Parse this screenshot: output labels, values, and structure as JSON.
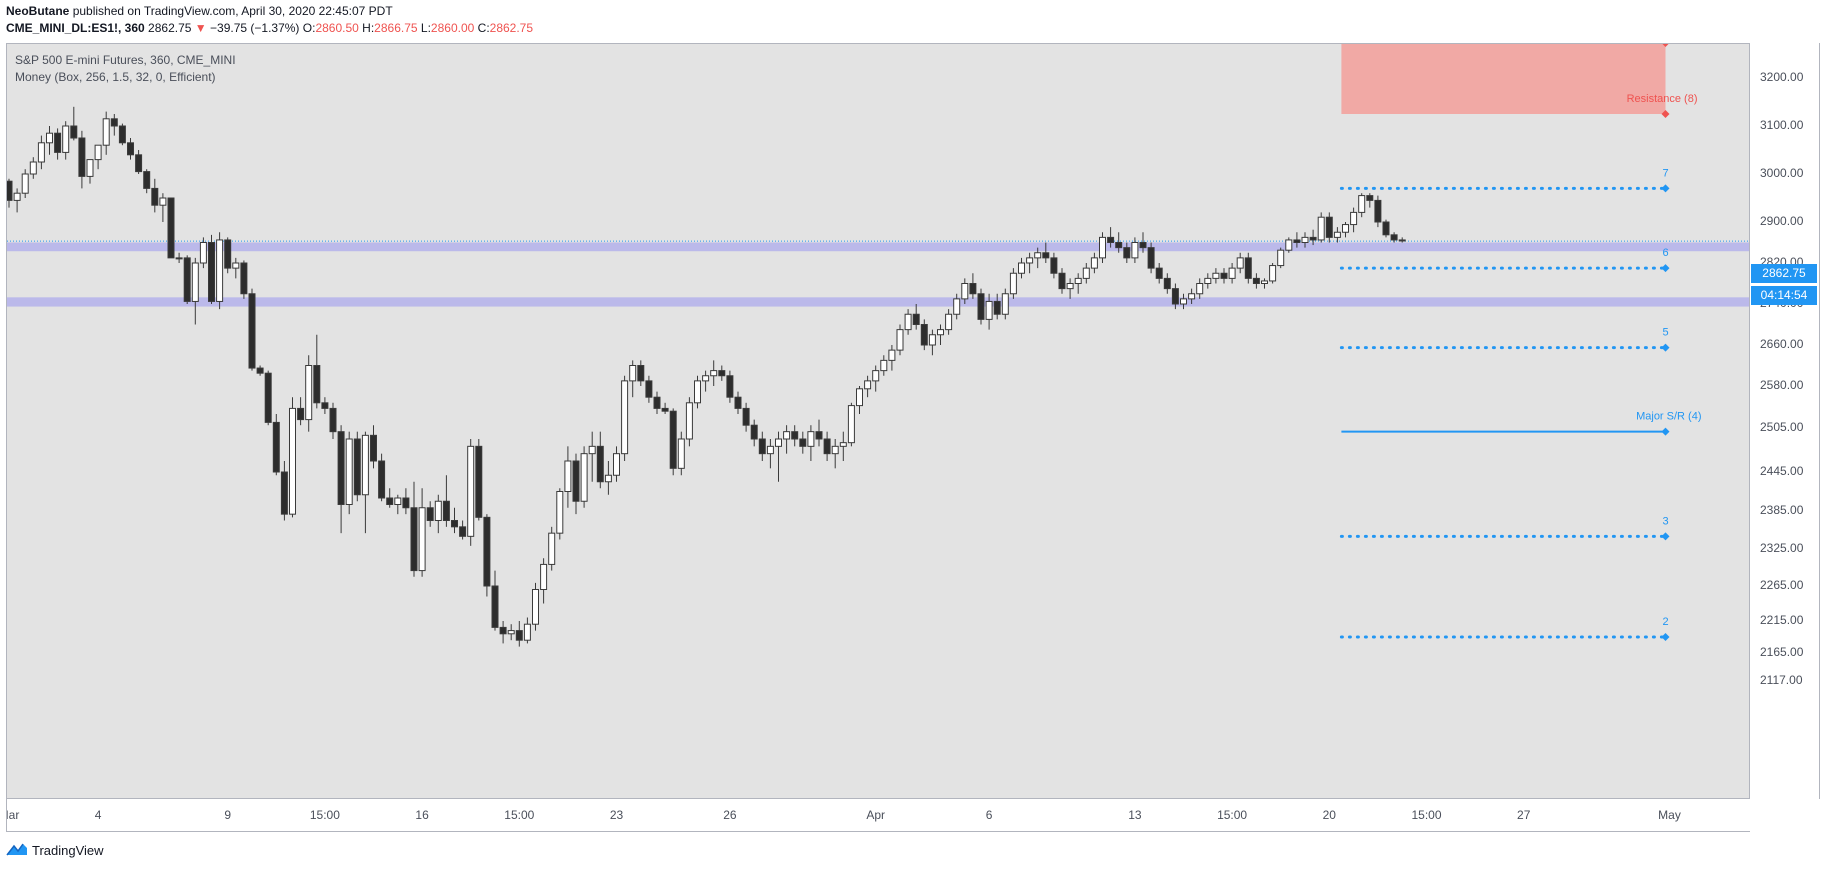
{
  "header": {
    "author": "NeoButane",
    "published": "published on TradingView.com, April 30, 2020 22:45:07 PDT",
    "symbol": "CME_MINI_DL:ES1!, 360",
    "last": "2862.75",
    "arrow": "▼",
    "change": "−39.75 (−1.37%)",
    "o_label": "O:",
    "o": "2860.50",
    "h_label": "H:",
    "h": "2866.75",
    "l_label": "L:",
    "l": "2860.00",
    "c_label": "C:",
    "c": "2862.75"
  },
  "legend": {
    "title": "S&P 500 E-mini Futures, 360, CME_MINI",
    "indicator": "Money (Box, 256, 1.5, 32, 0, Efficient)"
  },
  "footer": {
    "brand": "TradingView"
  },
  "price_badge": "2862.75",
  "countdown_badge": "04:14:54",
  "chart_data": {
    "type": "candlestick",
    "title": "S&P 500 E-mini Futures, 360, CME_MINI",
    "ylim": [
      2100,
      3290
    ],
    "y_ticks": [
      3200,
      3100,
      3000,
      2900,
      2820,
      2740,
      2660,
      2580,
      2505,
      2445,
      2385,
      2325,
      2265,
      2215,
      2165,
      2117
    ],
    "y_tick_labels": [
      "3200.00",
      "3100.00",
      "3000.00",
      "2900.00",
      "2820.00",
      "2740.00",
      "2660.00",
      "2580.00",
      "2505.00",
      "2445.00",
      "2385.00",
      "2325.00",
      "2265.00",
      "2215.00",
      "2165.00",
      "2117.00"
    ],
    "x_ticks": [
      {
        "label": "Mar",
        "bar": 0
      },
      {
        "label": "4",
        "bar": 11
      },
      {
        "label": "9",
        "bar": 27
      },
      {
        "label": "15:00",
        "bar": 39
      },
      {
        "label": "16",
        "bar": 51
      },
      {
        "label": "15:00",
        "bar": 63
      },
      {
        "label": "23",
        "bar": 75
      },
      {
        "label": "26",
        "bar": 89
      },
      {
        "label": "Apr",
        "bar": 107
      },
      {
        "label": "6",
        "bar": 121
      },
      {
        "label": "13",
        "bar": 139
      },
      {
        "label": "15:00",
        "bar": 151
      },
      {
        "label": "20",
        "bar": 163
      },
      {
        "label": "15:00",
        "bar": 175
      },
      {
        "label": "27",
        "bar": 187
      },
      {
        "label": "May",
        "bar": 205
      }
    ],
    "candles": [
      [
        2985,
        2990,
        2930,
        2945
      ],
      [
        2945,
        2970,
        2920,
        2960
      ],
      [
        2960,
        3010,
        2950,
        3000
      ],
      [
        3000,
        3035,
        2990,
        3025
      ],
      [
        3025,
        3080,
        3010,
        3065
      ],
      [
        3065,
        3100,
        3040,
        3085
      ],
      [
        3085,
        3095,
        3030,
        3045
      ],
      [
        3045,
        3110,
        3030,
        3100
      ],
      [
        3100,
        3140,
        3070,
        3075
      ],
      [
        3075,
        3090,
        2970,
        2995
      ],
      [
        2995,
        3030,
        2980,
        3030
      ],
      [
        3030,
        3060,
        3010,
        3060
      ],
      [
        3060,
        3130,
        3040,
        3115
      ],
      [
        3115,
        3125,
        3080,
        3100
      ],
      [
        3100,
        3105,
        3060,
        3065
      ],
      [
        3065,
        3075,
        3030,
        3040
      ],
      [
        3040,
        3050,
        3000,
        3005
      ],
      [
        3005,
        3010,
        2960,
        2970
      ],
      [
        2970,
        2990,
        2920,
        2935
      ],
      [
        2935,
        2960,
        2900,
        2950
      ],
      [
        2950,
        2950,
        2830,
        2830
      ],
      [
        2830,
        2840,
        2820,
        2830
      ],
      [
        2830,
        2835,
        2740,
        2745
      ],
      [
        2745,
        2830,
        2700,
        2820
      ],
      [
        2820,
        2870,
        2810,
        2860
      ],
      [
        2860,
        2875,
        2740,
        2745
      ],
      [
        2745,
        2880,
        2730,
        2865
      ],
      [
        2865,
        2870,
        2800,
        2810
      ],
      [
        2810,
        2830,
        2790,
        2820
      ],
      [
        2820,
        2825,
        2750,
        2760
      ],
      [
        2760,
        2770,
        2610,
        2615
      ],
      [
        2615,
        2620,
        2600,
        2605
      ],
      [
        2605,
        2610,
        2510,
        2515
      ],
      [
        2515,
        2530,
        2440,
        2445
      ],
      [
        2445,
        2460,
        2370,
        2380
      ],
      [
        2380,
        2560,
        2375,
        2540
      ],
      [
        2540,
        2560,
        2510,
        2520
      ],
      [
        2520,
        2640,
        2500,
        2620
      ],
      [
        2620,
        2680,
        2540,
        2550
      ],
      [
        2550,
        2560,
        2530,
        2540
      ],
      [
        2540,
        2550,
        2490,
        2500
      ],
      [
        2500,
        2510,
        2350,
        2395
      ],
      [
        2395,
        2500,
        2380,
        2490
      ],
      [
        2490,
        2500,
        2400,
        2410
      ],
      [
        2410,
        2500,
        2350,
        2495
      ],
      [
        2495,
        2510,
        2450,
        2460
      ],
      [
        2460,
        2470,
        2400,
        2405
      ],
      [
        2405,
        2420,
        2390,
        2395
      ],
      [
        2395,
        2410,
        2380,
        2405
      ],
      [
        2405,
        2420,
        2380,
        2390
      ],
      [
        2390,
        2430,
        2280,
        2290
      ],
      [
        2290,
        2420,
        2280,
        2390
      ],
      [
        2390,
        2400,
        2360,
        2370
      ],
      [
        2370,
        2410,
        2350,
        2400
      ],
      [
        2400,
        2440,
        2360,
        2370
      ],
      [
        2370,
        2390,
        2350,
        2360
      ],
      [
        2360,
        2370,
        2340,
        2345
      ],
      [
        2345,
        2490,
        2330,
        2480
      ],
      [
        2480,
        2490,
        2370,
        2375
      ],
      [
        2375,
        2380,
        2250,
        2265
      ],
      [
        2265,
        2290,
        2200,
        2205
      ],
      [
        2205,
        2215,
        2180,
        2195
      ],
      [
        2195,
        2210,
        2185,
        2200
      ],
      [
        2200,
        2215,
        2175,
        2185
      ],
      [
        2185,
        2220,
        2180,
        2210
      ],
      [
        2210,
        2270,
        2200,
        2260
      ],
      [
        2260,
        2310,
        2240,
        2300
      ],
      [
        2300,
        2360,
        2290,
        2350
      ],
      [
        2350,
        2420,
        2340,
        2415
      ],
      [
        2415,
        2480,
        2390,
        2460
      ],
      [
        2460,
        2470,
        2380,
        2400
      ],
      [
        2400,
        2480,
        2390,
        2470
      ],
      [
        2470,
        2500,
        2430,
        2480
      ],
      [
        2480,
        2500,
        2420,
        2430
      ],
      [
        2430,
        2460,
        2410,
        2440
      ],
      [
        2440,
        2480,
        2430,
        2470
      ],
      [
        2470,
        2600,
        2460,
        2590
      ],
      [
        2590,
        2630,
        2560,
        2620
      ],
      [
        2620,
        2630,
        2580,
        2590
      ],
      [
        2590,
        2600,
        2550,
        2560
      ],
      [
        2560,
        2570,
        2530,
        2540
      ],
      [
        2540,
        2550,
        2530,
        2535
      ],
      [
        2535,
        2540,
        2440,
        2450
      ],
      [
        2450,
        2500,
        2440,
        2490
      ],
      [
        2490,
        2560,
        2480,
        2550
      ],
      [
        2550,
        2600,
        2540,
        2590
      ],
      [
        2590,
        2610,
        2570,
        2600
      ],
      [
        2600,
        2630,
        2580,
        2610
      ],
      [
        2610,
        2620,
        2590,
        2600
      ],
      [
        2600,
        2610,
        2550,
        2560
      ],
      [
        2560,
        2570,
        2530,
        2540
      ],
      [
        2540,
        2550,
        2500,
        2510
      ],
      [
        2510,
        2520,
        2480,
        2490
      ],
      [
        2490,
        2500,
        2460,
        2470
      ],
      [
        2470,
        2490,
        2450,
        2480
      ],
      [
        2480,
        2500,
        2430,
        2490
      ],
      [
        2490,
        2510,
        2470,
        2500
      ],
      [
        2500,
        2510,
        2480,
        2490
      ],
      [
        2490,
        2500,
        2470,
        2480
      ],
      [
        2480,
        2510,
        2460,
        2500
      ],
      [
        2500,
        2520,
        2480,
        2490
      ],
      [
        2490,
        2500,
        2460,
        2470
      ],
      [
        2470,
        2490,
        2450,
        2480
      ],
      [
        2480,
        2500,
        2460,
        2485
      ],
      [
        2485,
        2550,
        2480,
        2545
      ],
      [
        2545,
        2580,
        2530,
        2575
      ],
      [
        2575,
        2600,
        2560,
        2590
      ],
      [
        2590,
        2620,
        2570,
        2610
      ],
      [
        2610,
        2640,
        2600,
        2630
      ],
      [
        2630,
        2660,
        2610,
        2650
      ],
      [
        2650,
        2700,
        2640,
        2690
      ],
      [
        2690,
        2730,
        2680,
        2720
      ],
      [
        2720,
        2740,
        2690,
        2700
      ],
      [
        2700,
        2710,
        2650,
        2660
      ],
      [
        2660,
        2690,
        2640,
        2680
      ],
      [
        2680,
        2700,
        2660,
        2690
      ],
      [
        2690,
        2730,
        2680,
        2720
      ],
      [
        2720,
        2760,
        2710,
        2750
      ],
      [
        2750,
        2790,
        2740,
        2780
      ],
      [
        2780,
        2800,
        2750,
        2760
      ],
      [
        2760,
        2770,
        2700,
        2710
      ],
      [
        2710,
        2760,
        2690,
        2745
      ],
      [
        2745,
        2760,
        2710,
        2720
      ],
      [
        2720,
        2770,
        2710,
        2760
      ],
      [
        2760,
        2810,
        2750,
        2800
      ],
      [
        2800,
        2830,
        2790,
        2820
      ],
      [
        2820,
        2840,
        2800,
        2830
      ],
      [
        2830,
        2850,
        2810,
        2840
      ],
      [
        2840,
        2860,
        2820,
        2830
      ],
      [
        2830,
        2840,
        2790,
        2800
      ],
      [
        2800,
        2810,
        2760,
        2770
      ],
      [
        2770,
        2790,
        2750,
        2780
      ],
      [
        2780,
        2800,
        2760,
        2790
      ],
      [
        2790,
        2820,
        2780,
        2810
      ],
      [
        2810,
        2840,
        2800,
        2830
      ],
      [
        2830,
        2880,
        2820,
        2870
      ],
      [
        2870,
        2890,
        2850,
        2860
      ],
      [
        2860,
        2880,
        2840,
        2850
      ],
      [
        2850,
        2860,
        2820,
        2830
      ],
      [
        2830,
        2870,
        2820,
        2860
      ],
      [
        2860,
        2880,
        2840,
        2850
      ],
      [
        2850,
        2860,
        2800,
        2810
      ],
      [
        2810,
        2820,
        2780,
        2790
      ],
      [
        2790,
        2800,
        2760,
        2770
      ],
      [
        2770,
        2780,
        2730,
        2740
      ],
      [
        2740,
        2760,
        2730,
        2750
      ],
      [
        2750,
        2770,
        2740,
        2760
      ],
      [
        2760,
        2790,
        2750,
        2780
      ],
      [
        2780,
        2800,
        2770,
        2790
      ],
      [
        2790,
        2810,
        2780,
        2800
      ],
      [
        2800,
        2810,
        2780,
        2790
      ],
      [
        2790,
        2820,
        2780,
        2810
      ],
      [
        2810,
        2840,
        2800,
        2830
      ],
      [
        2830,
        2840,
        2780,
        2790
      ],
      [
        2790,
        2800,
        2770,
        2780
      ],
      [
        2780,
        2790,
        2770,
        2785
      ],
      [
        2785,
        2820,
        2780,
        2815
      ],
      [
        2815,
        2850,
        2810,
        2845
      ],
      [
        2845,
        2870,
        2840,
        2865
      ],
      [
        2865,
        2880,
        2850,
        2860
      ],
      [
        2860,
        2880,
        2850,
        2870
      ],
      [
        2870,
        2885,
        2855,
        2865
      ],
      [
        2865,
        2920,
        2860,
        2910
      ],
      [
        2910,
        2920,
        2860,
        2870
      ],
      [
        2870,
        2890,
        2860,
        2880
      ],
      [
        2880,
        2900,
        2870,
        2895
      ],
      [
        2895,
        2930,
        2880,
        2920
      ],
      [
        2920,
        2960,
        2910,
        2955
      ],
      [
        2955,
        2960,
        2930,
        2945
      ],
      [
        2945,
        2955,
        2890,
        2900
      ],
      [
        2900,
        2905,
        2870,
        2875
      ],
      [
        2875,
        2880,
        2860,
        2865
      ],
      [
        2865,
        2870,
        2860,
        2863
      ]
    ],
    "box_top": {
      "label": "Resistance (8)",
      "y_from": 3125,
      "y_to": 3290,
      "color": "#f1a9a5"
    },
    "levels": [
      {
        "label": "7",
        "y": 2970,
        "style": "dotted",
        "color": "#2196f3"
      },
      {
        "label": "6",
        "y": 2810,
        "style": "dotted",
        "color": "#2196f3"
      },
      {
        "label": "5",
        "y": 2655,
        "style": "dotted",
        "color": "#2196f3"
      },
      {
        "label": "Major S/R (4)",
        "y": 2500,
        "style": "solid",
        "color": "#2196f3"
      },
      {
        "label": "3",
        "y": 2345,
        "style": "dotted",
        "color": "#2196f3"
      },
      {
        "label": "2",
        "y": 2190,
        "style": "dotted",
        "color": "#2196f3"
      }
    ],
    "bands": [
      {
        "y_from": 2843,
        "y_to": 2860,
        "color": "#b6b4ea"
      },
      {
        "y_from": 2735,
        "y_to": 2753,
        "color": "#b6b4ea"
      }
    ],
    "last_price": 2862.75,
    "level_span_bars": [
      164,
      205
    ]
  }
}
